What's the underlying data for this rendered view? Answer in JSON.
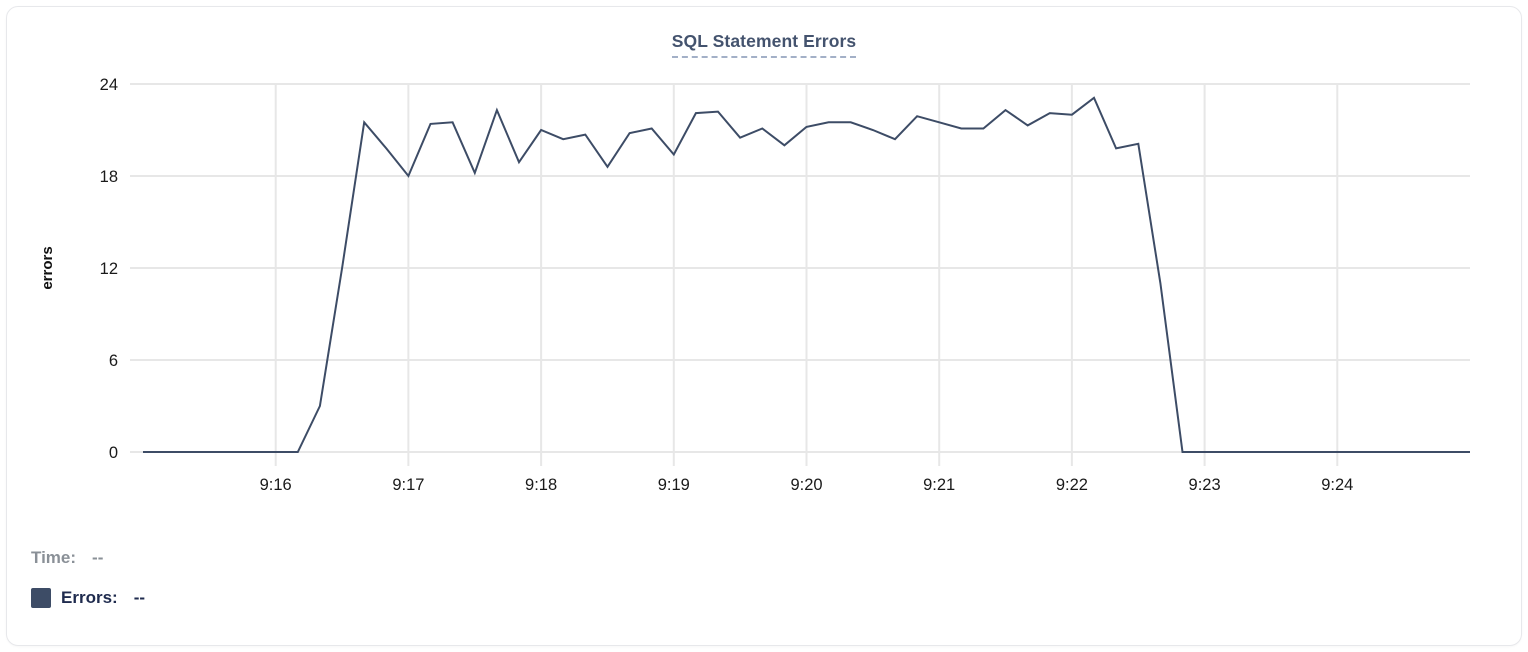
{
  "chart": {
    "title": "SQL Statement Errors",
    "y_axis_title": "errors"
  },
  "legend": {
    "time_label": "Time:",
    "time_value": "--",
    "errors_label": "Errors:",
    "errors_value": "--"
  },
  "colors": {
    "line": "#3d4c66",
    "legend_swatch": "#3d4c66",
    "title_text": "#44536e",
    "title_underline": "#a3b0c7",
    "gridline": "#e7e7e7",
    "tick_label_text": "#1a1a1a",
    "time_row_gray": "#8a9097",
    "errors_row_navy": "#1f2b4e",
    "card_border": "#e7e8eb",
    "background": "#ffffff"
  },
  "chart_data": {
    "type": "line",
    "title": "SQL Statement Errors",
    "xlabel": "",
    "ylabel": "errors",
    "ylim": [
      0,
      24
    ],
    "y_ticks": [
      0,
      6,
      12,
      18,
      24
    ],
    "x_tick_labels": [
      "9:16",
      "9:17",
      "9:18",
      "9:19",
      "9:20",
      "9:21",
      "9:22",
      "9:23",
      "9:24"
    ],
    "x_range": [
      "9:15:00",
      "9:25:00"
    ],
    "interval_seconds": 10,
    "grid": true,
    "legend_position": "bottom-left",
    "times": [
      "9:15:00",
      "9:15:10",
      "9:15:20",
      "9:15:30",
      "9:15:40",
      "9:15:50",
      "9:16:00",
      "9:16:10",
      "9:16:20",
      "9:16:30",
      "9:16:40",
      "9:16:50",
      "9:17:00",
      "9:17:10",
      "9:17:20",
      "9:17:30",
      "9:17:40",
      "9:17:50",
      "9:18:00",
      "9:18:10",
      "9:18:20",
      "9:18:30",
      "9:18:40",
      "9:18:50",
      "9:19:00",
      "9:19:10",
      "9:19:20",
      "9:19:30",
      "9:19:40",
      "9:19:50",
      "9:20:00",
      "9:20:10",
      "9:20:20",
      "9:20:30",
      "9:20:40",
      "9:20:50",
      "9:21:00",
      "9:21:10",
      "9:21:20",
      "9:21:30",
      "9:21:40",
      "9:21:50",
      "9:22:00",
      "9:22:10",
      "9:22:20",
      "9:22:30",
      "9:22:40",
      "9:22:50",
      "9:23:00",
      "9:23:10",
      "9:23:20",
      "9:23:30",
      "9:23:40",
      "9:23:50",
      "9:24:00",
      "9:24:10",
      "9:24:20",
      "9:24:30",
      "9:24:40",
      "9:24:50",
      "9:25:00"
    ],
    "series": [
      {
        "name": "Errors",
        "color": "#3d4c66",
        "values": [
          0,
          0,
          0,
          0,
          0,
          0,
          0,
          0,
          3,
          12,
          21.5,
          19.8,
          18,
          21.4,
          21.5,
          18.2,
          22.3,
          18.9,
          21,
          20.4,
          20.7,
          18.6,
          20.8,
          21.1,
          19.4,
          22.1,
          22.2,
          20.5,
          21.1,
          20,
          21.2,
          21.5,
          21.5,
          21,
          20.4,
          21.9,
          21.5,
          21.1,
          21.1,
          22.3,
          21.3,
          22.1,
          22,
          23.1,
          19.8,
          20.1,
          11,
          0,
          0,
          0,
          0,
          0,
          0,
          0,
          0,
          0,
          0,
          0,
          0,
          0,
          0
        ]
      }
    ]
  }
}
